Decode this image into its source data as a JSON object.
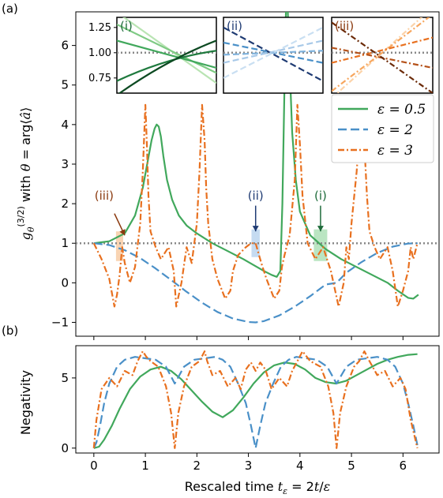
{
  "colors": {
    "green": "#41a85c",
    "blue": "#4a90c8",
    "orange": "#e8701f",
    "dark_orange": "#8b3a0f",
    "dark_blue": "#1f3b73",
    "dark_green": "#1e6b3a",
    "reference": "#888888"
  },
  "chart_data": [
    {
      "type": "line",
      "panel_label": "(a)",
      "ylabel": "g_θ^(3/2) with θ = arg⟨â⟩",
      "ylim": [
        -1.35,
        6.85
      ],
      "xlim": [
        -0.35,
        6.7
      ],
      "xticks": [
        0,
        1,
        2,
        3,
        4,
        5,
        6
      ],
      "yticks": [
        -1,
        0,
        1,
        2,
        3,
        4,
        5,
        6
      ],
      "reference_line": 1,
      "legend_position": "right",
      "series": [
        {
          "name": "ε = 0.5",
          "style": "solid",
          "color": "#41a85c",
          "x": [
            0,
            0.3,
            0.6,
            0.8,
            0.95,
            1.05,
            1.12,
            1.18,
            1.22,
            1.26,
            1.3,
            1.35,
            1.42,
            1.52,
            1.65,
            1.8,
            2.0,
            2.3,
            2.6,
            2.9,
            3.1,
            3.3,
            3.45,
            3.55,
            3.62,
            3.66,
            3.7,
            3.73,
            3.76,
            3.8,
            3.85,
            3.92,
            4.0,
            4.2,
            4.5,
            4.8,
            5.1,
            5.4,
            5.7,
            5.9,
            6.1,
            6.2,
            6.3
          ],
          "y": [
            1.0,
            1.05,
            1.25,
            1.7,
            2.4,
            3.1,
            3.6,
            3.9,
            4.0,
            3.95,
            3.7,
            3.2,
            2.6,
            2.1,
            1.7,
            1.45,
            1.25,
            1.0,
            0.8,
            0.6,
            0.45,
            0.3,
            0.2,
            0.15,
            0.3,
            2.0,
            5.0,
            7.0,
            7.0,
            5.5,
            3.8,
            2.6,
            1.8,
            1.2,
            0.85,
            0.6,
            0.4,
            0.2,
            0.0,
            -0.2,
            -0.38,
            -0.4,
            -0.3
          ]
        },
        {
          "name": "ε = 2",
          "style": "dashed",
          "color": "#4a90c8",
          "x": [
            0,
            0.3,
            0.6,
            0.9,
            1.2,
            1.5,
            1.571,
            1.8,
            2.1,
            2.4,
            2.7,
            3.0,
            3.142,
            3.3,
            3.6,
            3.9,
            4.2,
            4.5,
            4.712,
            4.9,
            5.2,
            5.5,
            5.8,
            6.1,
            6.283
          ],
          "y": [
            1.0,
            0.955,
            0.825,
            0.623,
            0.362,
            0.071,
            0.0,
            -0.227,
            -0.505,
            -0.737,
            -0.904,
            -0.99,
            -1.0,
            -0.968,
            -0.826,
            -0.602,
            -0.336,
            -0.043,
            0.0,
            0.256,
            0.527,
            0.754,
            0.914,
            0.993,
            1.0
          ]
        },
        {
          "name": "ε = 3",
          "style": "dashdot",
          "color": "#e8701f",
          "x": [
            0,
            0.15,
            0.3,
            0.4,
            0.45,
            0.5,
            0.55,
            0.6,
            0.7,
            0.8,
            0.9,
            0.95,
            1.0,
            1.03,
            1.06,
            1.1,
            1.2,
            1.3,
            1.45,
            1.55,
            1.6,
            1.7,
            1.8,
            1.9,
            2.0,
            2.05,
            2.1,
            2.15,
            2.18,
            2.22,
            2.3,
            2.4,
            2.55,
            2.65,
            2.7,
            2.8,
            2.95,
            3.05,
            3.14,
            3.25,
            3.35,
            3.5,
            3.6,
            3.65,
            3.7,
            3.8,
            3.9,
            3.95,
            4.0,
            4.05,
            4.15,
            4.3,
            4.45,
            4.6,
            4.75,
            4.85,
            4.9,
            4.95,
            5.0,
            5.1,
            5.2,
            5.25,
            5.3,
            5.35,
            5.45,
            5.55,
            5.7,
            5.8,
            5.9,
            6.0,
            6.1,
            6.15,
            6.2,
            6.28
          ],
          "y": [
            1.0,
            0.6,
            0.1,
            -0.6,
            -0.3,
            0.2,
            0.9,
            0.5,
            0.0,
            0.4,
            1.5,
            2.8,
            4.5,
            3.5,
            2.2,
            1.3,
            0.9,
            0.6,
            0.9,
            0.3,
            -0.6,
            0.0,
            0.9,
            0.5,
            1.5,
            2.8,
            4.5,
            3.6,
            2.4,
            1.5,
            0.6,
            0.1,
            -0.4,
            -0.2,
            0.3,
            0.7,
            0.9,
            1.0,
            1.0,
            0.5,
            0.1,
            -0.4,
            -0.2,
            0.4,
            0.7,
            1.2,
            2.6,
            4.5,
            3.5,
            2.2,
            1.0,
            0.6,
            0.9,
            0.3,
            -0.6,
            0.0,
            0.9,
            0.6,
            1.5,
            2.8,
            4.5,
            3.5,
            2.2,
            1.3,
            0.9,
            0.6,
            0.9,
            0.3,
            -0.6,
            -0.2,
            0.3,
            0.9,
            0.6,
            1.0
          ]
        }
      ],
      "annotations": [
        {
          "label": "(iii)",
          "x": 0.5,
          "color": "#8b3a0f",
          "highlight_color": "#f7c9a0"
        },
        {
          "label": "(ii)",
          "x": 3.14,
          "color": "#1f3b73",
          "highlight_color": "#b7d2ee"
        },
        {
          "label": "(i)",
          "x": 4.4,
          "color": "#1e6b3a",
          "highlight_color": "#a9deb3"
        }
      ],
      "insets": [
        {
          "label": "(i)",
          "label_color": "#1e6b3a",
          "yticks": [
            "1.25",
            "1.00",
            "0.75"
          ],
          "lines": [
            {
              "color": "#b9e4b3",
              "y0": 1.4,
              "y1": 0.7
            },
            {
              "color": "#7fca84",
              "y0": 1.28,
              "y1": 0.8
            },
            {
              "color": "#41a85c",
              "y0": 1.12,
              "y1": 0.85
            },
            {
              "color": "#1f7a3e",
              "y0": 0.72,
              "y1": 1.02
            },
            {
              "color": "#0d4a22",
              "y0": 0.58,
              "y1": 1.12
            }
          ]
        },
        {
          "label": "(ii)",
          "label_color": "#1f3b73",
          "lines": [
            {
              "color": "#1f3b73",
              "y0": 1.25,
              "y1": 0.72
            },
            {
              "color": "#4a90c8",
              "y0": 1.1,
              "y1": 0.9
            },
            {
              "color": "#7fb2dc",
              "y0": 0.98,
              "y1": 1.02
            },
            {
              "color": "#a8c9e8",
              "y0": 0.9,
              "y1": 1.12
            },
            {
              "color": "#c9dff2",
              "y0": 0.75,
              "y1": 1.25
            }
          ]
        },
        {
          "label": "(iii)",
          "label_color": "#8b3a0f",
          "lines": [
            {
              "color": "#fcd3a9",
              "y0": 0.55,
              "y1": 1.45
            },
            {
              "color": "#f7a65e",
              "y0": 0.62,
              "y1": 1.38
            },
            {
              "color": "#e8701f",
              "y0": 0.9,
              "y1": 1.15
            },
            {
              "color": "#b5521a",
              "y0": 1.05,
              "y1": 0.85
            },
            {
              "color": "#6b2a08",
              "y0": 1.3,
              "y1": 0.6
            }
          ]
        }
      ]
    },
    {
      "type": "line",
      "panel_label": "(b)",
      "ylabel": "Negativity",
      "xlabel": "Rescaled time t_ε = 2t/ε",
      "ylim": [
        -0.35,
        7.3
      ],
      "xlim": [
        -0.35,
        6.7
      ],
      "xticks": [
        0,
        1,
        2,
        3,
        4,
        5,
        6
      ],
      "yticks": [
        0,
        5
      ],
      "series": [
        {
          "name": "ε = 0.5",
          "style": "solid",
          "color": "#41a85c",
          "x": [
            0,
            0.1,
            0.2,
            0.35,
            0.5,
            0.7,
            0.9,
            1.1,
            1.3,
            1.5,
            1.7,
            1.9,
            2.1,
            2.3,
            2.5,
            2.7,
            2.9,
            3.1,
            3.3,
            3.5,
            3.7,
            3.9,
            4.1,
            4.3,
            4.5,
            4.7,
            4.9,
            5.1,
            5.3,
            5.5,
            5.7,
            5.9,
            6.1,
            6.28
          ],
          "y": [
            0,
            0.1,
            0.6,
            1.6,
            2.8,
            4.2,
            5.1,
            5.6,
            5.8,
            5.5,
            4.9,
            4.1,
            3.3,
            2.6,
            2.2,
            2.7,
            3.6,
            4.6,
            5.4,
            5.9,
            6.1,
            6.0,
            5.6,
            5.0,
            4.7,
            4.6,
            4.8,
            5.2,
            5.6,
            6.0,
            6.3,
            6.5,
            6.65,
            6.7
          ]
        },
        {
          "name": "ε = 2",
          "style": "dashed",
          "color": "#4a90c8",
          "x": [
            0,
            0.05,
            0.12,
            0.2,
            0.3,
            0.45,
            0.6,
            0.8,
            1.0,
            1.2,
            1.4,
            1.57,
            1.75,
            1.95,
            2.15,
            2.35,
            2.5,
            2.65,
            2.8,
            2.95,
            3.05,
            3.14,
            3.23,
            3.33,
            3.48,
            3.63,
            3.78,
            3.93,
            4.13,
            4.33,
            4.53,
            4.71,
            4.9,
            5.1,
            5.3,
            5.5,
            5.7,
            5.85,
            6.0,
            6.1,
            6.2,
            6.28
          ],
          "y": [
            0,
            0.4,
            1.6,
            3.2,
            4.6,
            5.8,
            6.3,
            6.5,
            6.4,
            6.3,
            5.8,
            4.6,
            5.8,
            6.3,
            6.4,
            6.5,
            6.3,
            5.8,
            4.6,
            3.2,
            1.6,
            0.0,
            1.6,
            3.2,
            4.6,
            5.8,
            6.3,
            6.5,
            6.4,
            6.3,
            5.8,
            4.6,
            5.8,
            6.3,
            6.4,
            6.5,
            6.3,
            5.8,
            4.6,
            3.2,
            1.6,
            0.2
          ]
        },
        {
          "name": "ε = 3",
          "style": "dashdot",
          "color": "#e8701f",
          "x": [
            0,
            0.05,
            0.15,
            0.3,
            0.45,
            0.6,
            0.75,
            0.85,
            0.95,
            1.02,
            1.1,
            1.25,
            1.4,
            1.5,
            1.57,
            1.64,
            1.75,
            1.9,
            2.05,
            2.15,
            2.2,
            2.3,
            2.45,
            2.6,
            2.75,
            2.85,
            2.95,
            3.05,
            3.14,
            3.23,
            3.33,
            3.45,
            3.6,
            3.75,
            3.85,
            3.95,
            4.05,
            4.2,
            4.4,
            4.55,
            4.65,
            4.71,
            4.78,
            4.9,
            5.05,
            5.15,
            5.25,
            5.35,
            5.5,
            5.65,
            5.8,
            5.95,
            6.05,
            6.15,
            6.28
          ],
          "y": [
            0,
            2.0,
            4.2,
            5.0,
            4.4,
            5.5,
            5.2,
            6.2,
            6.9,
            6.5,
            6.2,
            5.8,
            4.4,
            2.5,
            0.0,
            2.5,
            4.4,
            5.8,
            6.2,
            6.9,
            6.2,
            5.2,
            5.5,
            4.4,
            5.0,
            4.2,
            5.6,
            6.1,
            5.5,
            6.1,
            5.6,
            4.2,
            5.0,
            4.4,
            5.5,
            6.2,
            6.9,
            6.2,
            5.8,
            4.4,
            2.5,
            0.0,
            2.5,
            4.4,
            5.8,
            6.2,
            6.9,
            6.2,
            5.2,
            5.5,
            4.4,
            5.0,
            4.2,
            2.0,
            0.0
          ]
        }
      ]
    }
  ]
}
